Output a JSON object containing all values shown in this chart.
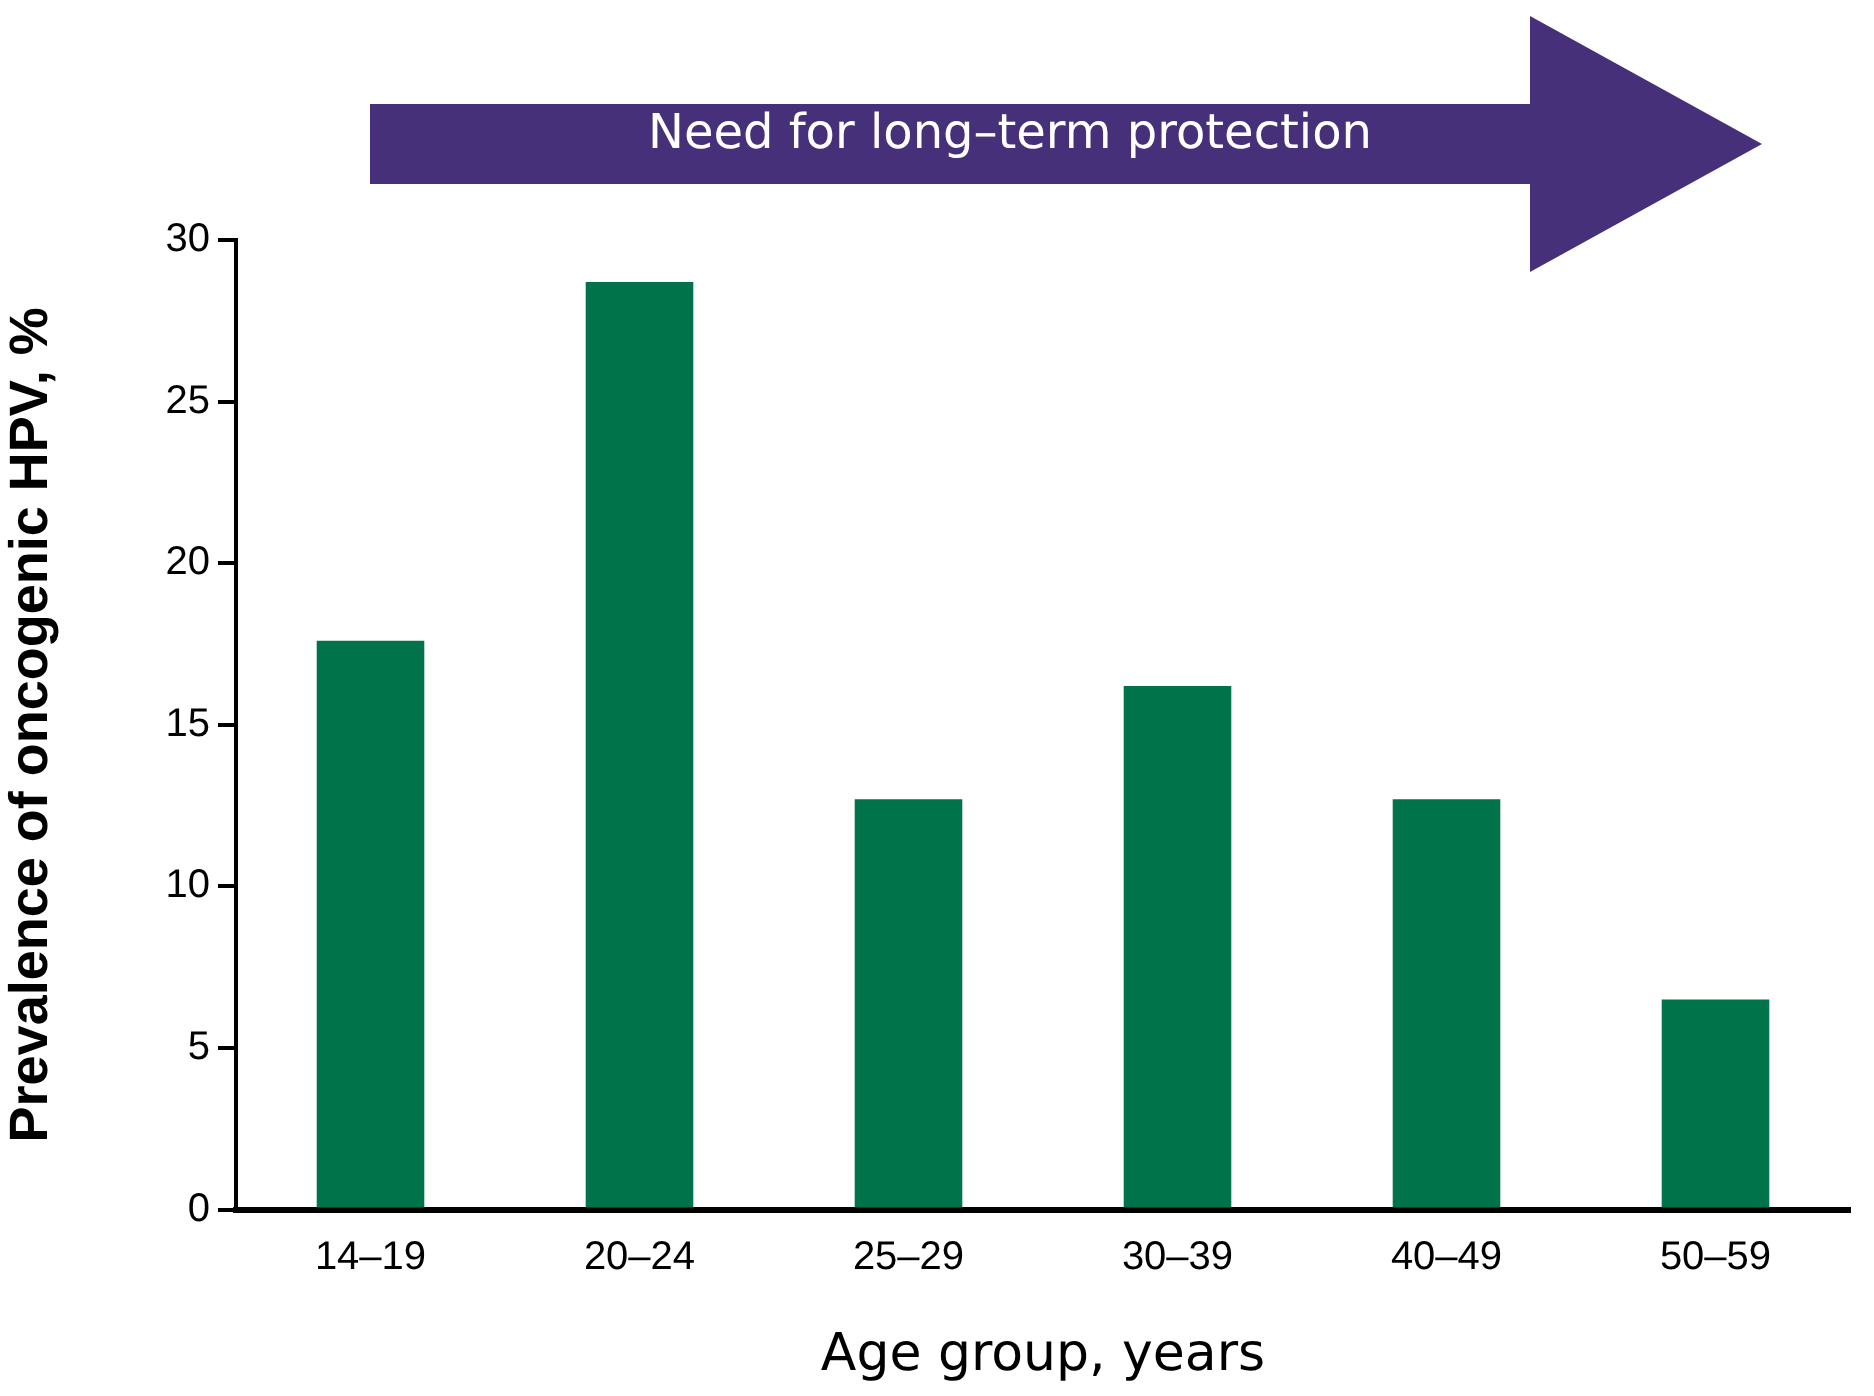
{
  "chart_data": {
    "type": "bar",
    "xlabel": "Age group, years",
    "ylabel": "Prevalence of oncogenic HPV, %",
    "annotations": [
      "Need for long–term protection"
    ],
    "categories": [
      "14–19",
      "20–24",
      "25–29",
      "30–39",
      "40–49",
      "50–59"
    ],
    "values": [
      17.6,
      28.7,
      12.7,
      16.2,
      12.7,
      6.5
    ],
    "color": "#00734b",
    "ylim": [
      0,
      30
    ],
    "yticks": [
      0,
      5,
      10,
      15,
      20,
      25,
      30
    ],
    "grid": false,
    "legend": false
  }
}
